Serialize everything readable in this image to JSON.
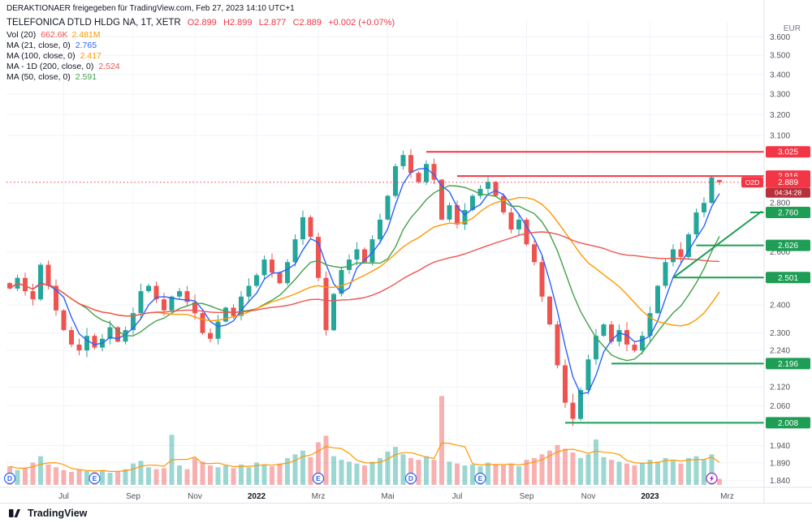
{
  "meta": {
    "watermark": "DERAKTIONAER freigegeben für TradingView.com, Feb 27, 2023 14:10 UTC+1",
    "currency": "EUR"
  },
  "legend": {
    "symbol": "TELEFONICA DTLD HLDG NA, 1T, XETR",
    "ohlc": [
      "O2.899",
      "H2.899",
      "L2.877",
      "C2.889",
      "+0.002 (+0.07%)"
    ],
    "ohlc_color": "#f23645",
    "indicators": [
      {
        "label": "Vol (20)",
        "values": [
          {
            "text": "662.6K",
            "color": "#ef5350"
          },
          {
            "text": "2.481M",
            "color": "#ff9800"
          }
        ]
      },
      {
        "label": "MA (21, close, 0)",
        "values": [
          {
            "text": "2.765",
            "color": "#2962ff"
          }
        ]
      },
      {
        "label": "MA (100, close, 0)",
        "values": [
          {
            "text": "2.417",
            "color": "#ff9800"
          }
        ]
      },
      {
        "label": "MA - 1D (200, close, 0)",
        "values": [
          {
            "text": "2.524",
            "color": "#ef5350"
          }
        ]
      },
      {
        "label": "MA (50, close, 0)",
        "values": [
          {
            "text": "2.591",
            "color": "#43a047"
          }
        ]
      }
    ]
  },
  "footer": {
    "brand": "TradingView"
  },
  "chart_data": {
    "type": "candlestick",
    "title": "TELEFONICA DTLD HLDG NA, 1T, XETR",
    "interval": "1T (daily)",
    "scale": "log",
    "colors": {
      "up": "#26a69a",
      "down": "#ef5350",
      "grid": "#f0f3fa",
      "axis_text": "#50535e",
      "border": "#e0e3eb"
    },
    "y_axis": {
      "min": 1.828,
      "max": 3.65,
      "ticks": [
        3.6,
        3.5,
        3.4,
        3.3,
        3.2,
        3.1,
        2.8,
        2.6,
        2.4,
        2.3,
        2.24,
        2.12,
        2.06,
        1.94,
        1.89,
        1.84
      ]
    },
    "x_axis": {
      "ticks": [
        {
          "label": "Jul",
          "index": 7
        },
        {
          "label": "Sep",
          "index": 16
        },
        {
          "label": "Nov",
          "index": 24
        },
        {
          "label": "2022",
          "index": 32,
          "emphasis": true
        },
        {
          "label": "Mrz",
          "index": 40
        },
        {
          "label": "Mai",
          "index": 49
        },
        {
          "label": "Jul",
          "index": 58
        },
        {
          "label": "Sep",
          "index": 67
        },
        {
          "label": "Nov",
          "index": 75
        },
        {
          "label": "2023",
          "index": 83,
          "emphasis": true
        },
        {
          "label": "Mrz",
          "index": 93
        }
      ]
    },
    "closes": [
      2.46,
      2.5,
      2.45,
      2.42,
      2.55,
      2.47,
      2.38,
      2.31,
      2.26,
      2.24,
      2.29,
      2.25,
      2.28,
      2.32,
      2.27,
      2.31,
      2.37,
      2.45,
      2.47,
      2.42,
      2.38,
      2.43,
      2.45,
      2.41,
      2.37,
      2.3,
      2.28,
      2.34,
      2.39,
      2.36,
      2.43,
      2.47,
      2.51,
      2.57,
      2.52,
      2.48,
      2.56,
      2.65,
      2.74,
      2.66,
      2.5,
      2.31,
      2.44,
      2.53,
      2.57,
      2.61,
      2.56,
      2.65,
      2.73,
      2.83,
      2.96,
      3.01,
      2.93,
      2.89,
      2.97,
      2.9,
      2.73,
      2.79,
      2.71,
      2.77,
      2.83,
      2.86,
      2.89,
      2.83,
      2.76,
      2.69,
      2.73,
      2.63,
      2.56,
      2.43,
      2.33,
      2.19,
      2.07,
      2.02,
      2.11,
      2.21,
      2.29,
      2.33,
      2.27,
      2.31,
      2.26,
      2.24,
      2.29,
      2.37,
      2.47,
      2.56,
      2.61,
      2.58,
      2.67,
      2.76,
      2.8,
      2.91,
      2.889
    ],
    "volumes_m": [
      2.0,
      1.6,
      1.8,
      2.4,
      3.1,
      2.2,
      1.9,
      1.6,
      1.4,
      1.7,
      1.5,
      1.4,
      1.6,
      1.3,
      1.5,
      1.7,
      2.3,
      2.6,
      1.9,
      1.7,
      1.8,
      5.4,
      2.1,
      1.7,
      2.9,
      2.5,
      2.1,
      1.9,
      2.1,
      1.8,
      2.2,
      1.9,
      2.4,
      2.2,
      2.0,
      2.3,
      2.9,
      3.3,
      3.7,
      3.0,
      4.6,
      5.3,
      3.1,
      2.7,
      2.5,
      2.3,
      2.1,
      2.5,
      2.9,
      3.6,
      4.1,
      3.3,
      2.9,
      2.7,
      3.1,
      2.7,
      9.6,
      2.5,
      2.3,
      2.1,
      2.2,
      2.0,
      2.4,
      2.2,
      2.1,
      2.3,
      2.0,
      2.7,
      2.9,
      3.3,
      3.7,
      4.3,
      3.9,
      3.5,
      2.9,
      3.3,
      4.9,
      3.0,
      2.7,
      2.5,
      2.3,
      2.1,
      2.4,
      2.7,
      2.5,
      2.9,
      2.6,
      2.3,
      2.9,
      3.1,
      2.7,
      3.3,
      0.66
    ],
    "volume_axis_max_m": 10.5,
    "current_bar": {
      "open": 2.899,
      "high": 2.899,
      "low": 2.877,
      "close": 2.889,
      "change": "+0.002",
      "change_pct": "+0.07%",
      "countdown": "04:34:28",
      "symbol_badge": "O2D"
    },
    "moving_averages": [
      {
        "name": "MA 21",
        "window_points": 4,
        "color": "#2962ff",
        "last": 2.765
      },
      {
        "name": "MA 50",
        "window_points": 10,
        "color": "#43a047",
        "last": 2.591
      },
      {
        "name": "MA 100",
        "window_points": 20,
        "color": "#ff9800",
        "last": 2.417
      },
      {
        "name": "MA 200 (1D)",
        "window_points": 40,
        "color": "#ef5350",
        "last": 2.524
      }
    ],
    "volume_ma": {
      "window_points": 4,
      "color": "#ff9800",
      "last": "2.481M"
    },
    "levels": [
      {
        "price": 3.025,
        "color": "#f23645",
        "start_index": 54
      },
      {
        "price": 2.916,
        "color": "#f23645",
        "start_index": 58
      },
      {
        "price": 2.76,
        "color": "#1e9d55",
        "start_index": 96
      },
      {
        "price": 2.626,
        "color": "#1e9d55",
        "start_index": 89
      },
      {
        "price": 2.501,
        "color": "#1e9d55",
        "start_index": 86
      },
      {
        "price": 2.196,
        "color": "#1e9d55",
        "start_index": 78
      },
      {
        "price": 2.008,
        "color": "#1e9d55",
        "start_index": 72
      }
    ],
    "trendline": {
      "start_index": 86,
      "start_price": 2.5,
      "end_index": 97.5,
      "end_price": 2.765,
      "color": "#1e9d55"
    },
    "price_line": {
      "price": 2.889,
      "color": "#f23645"
    },
    "markers": [
      {
        "glyph": "D",
        "index": 0,
        "color": "#2962ff"
      },
      {
        "glyph": "E",
        "index": 11,
        "color": "#2962ff"
      },
      {
        "glyph": "E",
        "index": 40,
        "color": "#2962ff"
      },
      {
        "glyph": "D",
        "index": 52,
        "color": "#2962ff"
      },
      {
        "glyph": "E",
        "index": 61,
        "color": "#2962ff"
      },
      {
        "glyph": "⚡",
        "index": 91,
        "color": "#9c27b0"
      }
    ]
  }
}
